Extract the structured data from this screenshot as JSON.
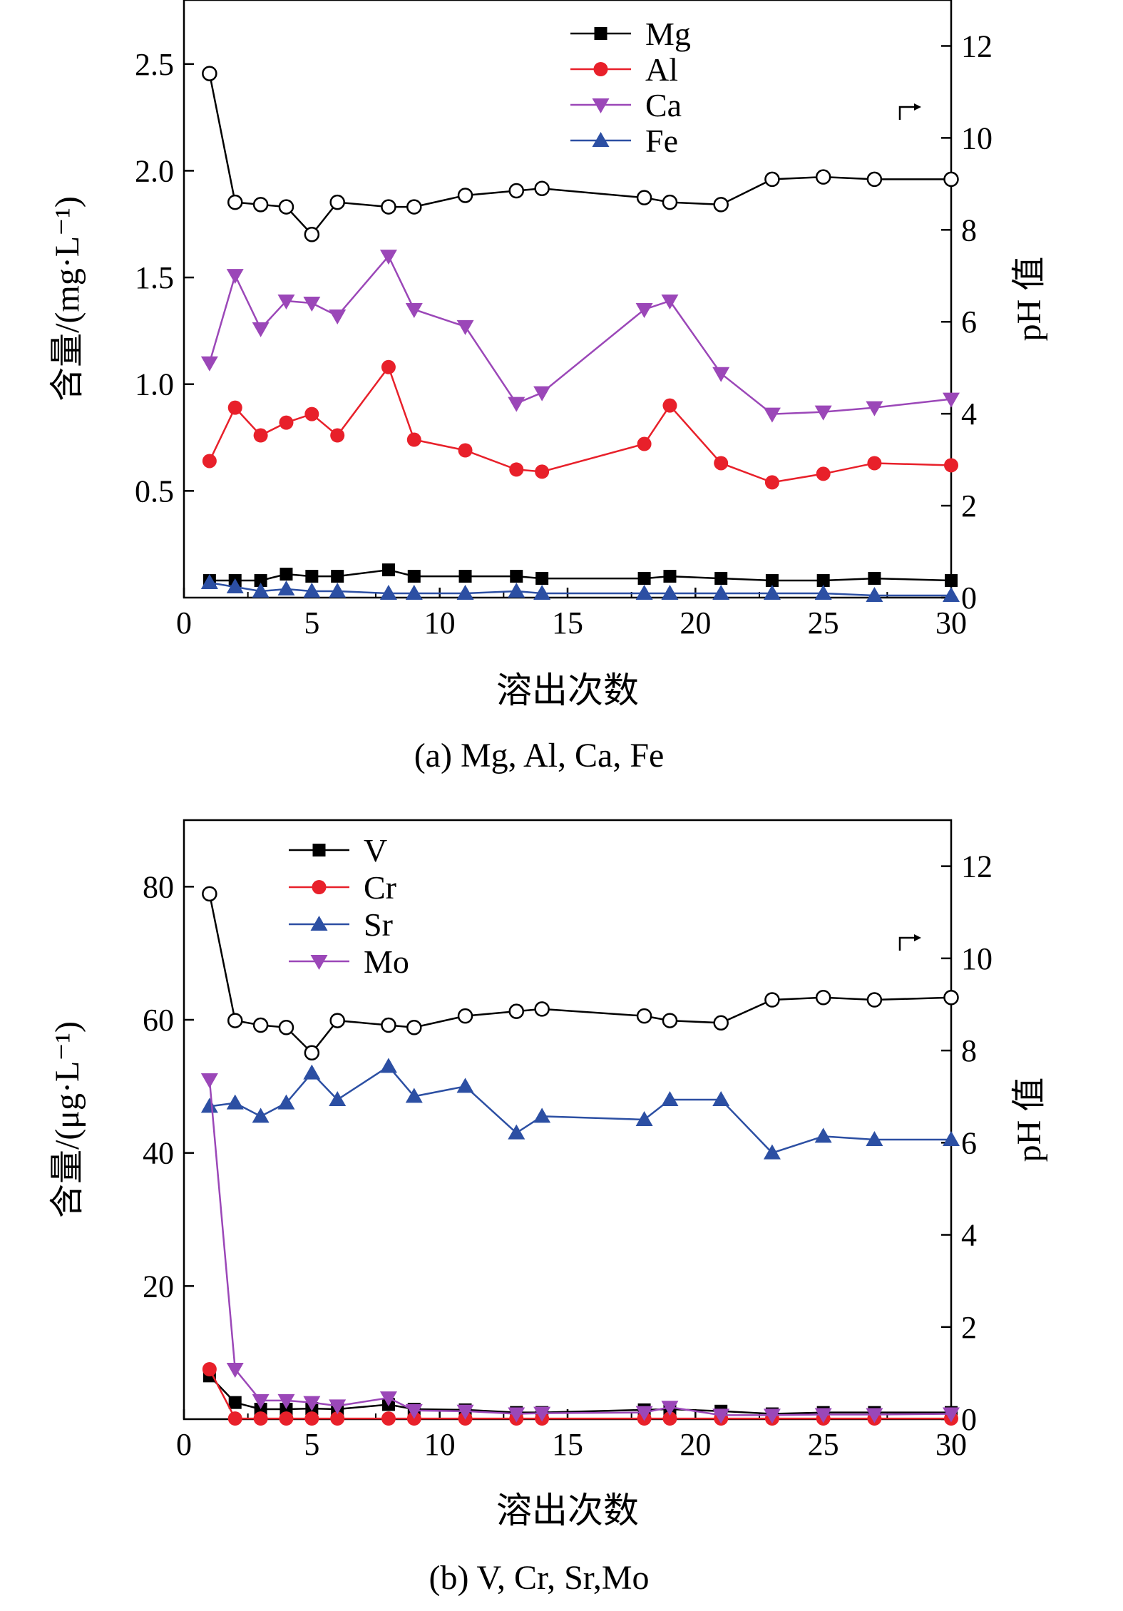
{
  "chart_data": [
    {
      "type": "line",
      "caption": "(a) Mg, Al, Ca, Fe",
      "xlabel": "溶出次数",
      "ylabel": "含量/(mg·L⁻¹)",
      "y2label": "pH 值",
      "xlim": [
        0,
        30
      ],
      "ylim": [
        0,
        2.8
      ],
      "y2lim": [
        0,
        13
      ],
      "xticks": [
        0,
        5,
        10,
        15,
        20,
        25,
        30
      ],
      "yticks": [
        0.5,
        1.0,
        1.5,
        2.0,
        2.5
      ],
      "yticks_format": 1,
      "y2ticks": [
        0,
        2,
        4,
        6,
        8,
        10,
        12
      ],
      "x": [
        1,
        2,
        3,
        4,
        5,
        6,
        8,
        9,
        11,
        13,
        14,
        18,
        19,
        21,
        23,
        25,
        27,
        30
      ],
      "legend_position": "top-center",
      "series": [
        {
          "name": "Mg",
          "color": "#000000",
          "marker": "square",
          "values": [
            0.08,
            0.08,
            0.08,
            0.11,
            0.1,
            0.1,
            0.13,
            0.1,
            0.1,
            0.1,
            0.09,
            0.09,
            0.1,
            0.09,
            0.08,
            0.08,
            0.09,
            0.08
          ]
        },
        {
          "name": "Al",
          "color": "#e8202a",
          "marker": "circle",
          "values": [
            0.64,
            0.89,
            0.76,
            0.82,
            0.86,
            0.76,
            1.08,
            0.74,
            0.69,
            0.6,
            0.59,
            0.72,
            0.9,
            0.63,
            0.54,
            0.58,
            0.63,
            0.62
          ]
        },
        {
          "name": "Ca",
          "color": "#9b47b8",
          "marker": "triangle-down",
          "values": [
            1.1,
            1.51,
            1.26,
            1.39,
            1.38,
            1.32,
            1.6,
            1.35,
            1.27,
            0.91,
            0.96,
            1.35,
            1.39,
            1.05,
            0.86,
            0.87,
            0.89,
            0.93
          ]
        },
        {
          "name": "Fe",
          "color": "#2c4fa3",
          "marker": "triangle-up",
          "values": [
            0.07,
            0.05,
            0.03,
            0.04,
            0.03,
            0.03,
            0.02,
            0.02,
            0.02,
            0.03,
            0.02,
            0.02,
            0.02,
            0.02,
            0.02,
            0.02,
            0.01,
            0.01
          ]
        },
        {
          "axis": "right",
          "color": "#000000",
          "marker": "open-circle",
          "values": [
            11.4,
            8.6,
            8.55,
            8.5,
            7.9,
            8.6,
            8.5,
            8.5,
            8.75,
            8.85,
            8.9,
            8.7,
            8.6,
            8.55,
            9.1,
            9.15,
            9.1,
            9.1
          ]
        }
      ]
    },
    {
      "type": "line",
      "caption": "(b) V, Cr, Sr,Mo",
      "xlabel": "溶出次数",
      "ylabel": "含量/(μg·L⁻¹)",
      "y2label": "pH 值",
      "xlim": [
        0,
        30
      ],
      "ylim": [
        0,
        90
      ],
      "y2lim": [
        0,
        13
      ],
      "xticks": [
        0,
        5,
        10,
        15,
        20,
        25,
        30
      ],
      "yticks": [
        20,
        40,
        60,
        80
      ],
      "yticks_format": 0,
      "y2ticks": [
        0,
        2,
        4,
        6,
        8,
        10,
        12
      ],
      "x": [
        1,
        2,
        3,
        4,
        5,
        6,
        8,
        9,
        11,
        13,
        14,
        18,
        19,
        21,
        23,
        25,
        27,
        30
      ],
      "legend_position": "top-left",
      "series": [
        {
          "name": "V",
          "color": "#000000",
          "marker": "square",
          "values": [
            6.5,
            2.5,
            1.5,
            1.5,
            1.6,
            1.5,
            2.2,
            1.5,
            1.4,
            1.0,
            1.0,
            1.4,
            1.5,
            1.2,
            0.8,
            1.0,
            1.0,
            1.0
          ]
        },
        {
          "name": "Cr",
          "color": "#e8202a",
          "marker": "circle",
          "values": [
            7.5,
            0.1,
            0.1,
            0.1,
            0.1,
            0.1,
            0.1,
            0.1,
            0.1,
            0.1,
            0.1,
            0.1,
            0.1,
            0.1,
            0.1,
            0.1,
            0.1,
            0.1
          ]
        },
        {
          "name": "Sr",
          "color": "#2c4fa3",
          "marker": "triangle-up",
          "values": [
            47.0,
            47.5,
            45.5,
            47.5,
            52.0,
            48.0,
            53.0,
            48.5,
            50.0,
            43.0,
            45.5,
            45.0,
            48.0,
            48.0,
            40.0,
            42.5,
            42.0,
            42.0
          ]
        },
        {
          "name": "Mo",
          "color": "#9b47b8",
          "marker": "triangle-down",
          "values": [
            51.0,
            7.5,
            2.8,
            2.8,
            2.5,
            2.0,
            3.2,
            1.3,
            1.2,
            0.8,
            0.9,
            1.0,
            1.8,
            0.6,
            0.6,
            0.7,
            0.7,
            0.8
          ]
        },
        {
          "axis": "right",
          "color": "#000000",
          "marker": "open-circle",
          "values": [
            11.4,
            8.65,
            8.55,
            8.5,
            7.95,
            8.65,
            8.55,
            8.5,
            8.75,
            8.85,
            8.9,
            8.75,
            8.65,
            8.6,
            9.1,
            9.15,
            9.1,
            9.15
          ]
        }
      ]
    }
  ]
}
